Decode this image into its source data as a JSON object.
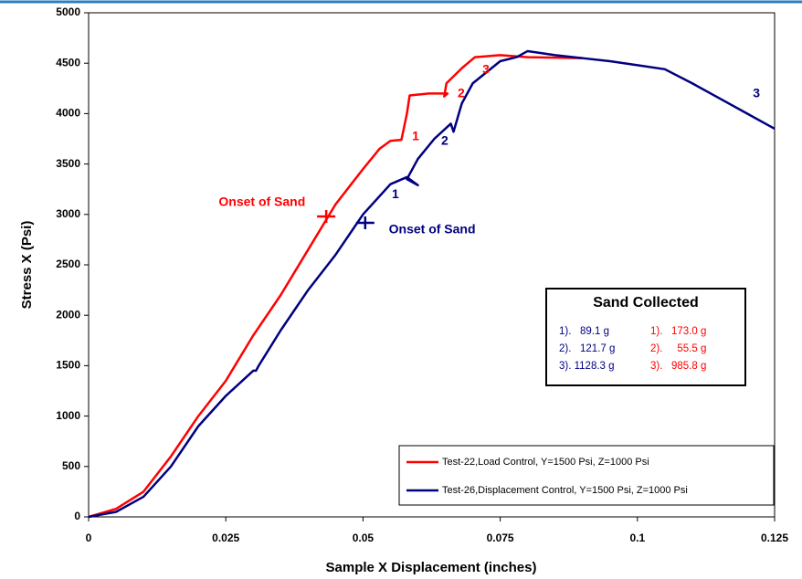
{
  "chart_data": {
    "type": "line",
    "x_label": "Sample X Displacement (inches)",
    "y_label": "Stress X (Psi)",
    "xlim": [
      0,
      0.125
    ],
    "xticks": [
      0,
      0.025,
      0.05,
      0.075,
      0.1,
      0.125
    ],
    "ylim": [
      0,
      5000
    ],
    "yticks": [
      0,
      500,
      1000,
      1500,
      2000,
      2500,
      3000,
      3500,
      4000,
      4500,
      5000
    ],
    "series": [
      {
        "name": "Test-22,Load Control, Y=1500 Psi, Z=1000 Psi",
        "color": "#ff0000",
        "x": [
          0,
          0.005,
          0.01,
          0.015,
          0.02,
          0.025,
          0.03,
          0.035,
          0.04,
          0.045,
          0.05,
          0.053,
          0.055,
          0.057,
          0.058,
          0.0585,
          0.062,
          0.0654,
          0.0648,
          0.0652,
          0.068,
          0.0704,
          0.075,
          0.08,
          0.09
        ],
        "values": [
          0,
          80,
          250,
          600,
          1000,
          1350,
          1800,
          2200,
          2650,
          3100,
          3450,
          3650,
          3730,
          3740,
          4000,
          4180,
          4200,
          4200,
          4170,
          4300,
          4450,
          4560,
          4580,
          4560,
          4550
        ]
      },
      {
        "name": "Test-26,Displacement Control, Y=1500 Psi, Z=1000 Psi",
        "color": "#000080",
        "x": [
          0,
          0.005,
          0.01,
          0.015,
          0.02,
          0.025,
          0.03,
          0.0305,
          0.031,
          0.035,
          0.04,
          0.045,
          0.05,
          0.055,
          0.058,
          0.06,
          0.058,
          0.06,
          0.063,
          0.066,
          0.0665,
          0.068,
          0.07,
          0.075,
          0.078,
          0.08,
          0.085,
          0.09,
          0.095,
          0.1,
          0.105,
          0.11,
          0.115,
          0.12,
          0.125
        ],
        "values": [
          0,
          50,
          200,
          500,
          900,
          1200,
          1450,
          1450,
          1500,
          1850,
          2250,
          2600,
          3000,
          3300,
          3370,
          3290,
          3350,
          3550,
          3750,
          3900,
          3820,
          4100,
          4300,
          4520,
          4560,
          4620,
          4580,
          4550,
          4520,
          4480,
          4440,
          4300,
          4150,
          4000,
          3850
        ]
      }
    ],
    "markers": [
      {
        "x": 0.0433,
        "y": 2980,
        "color": "#ff0000"
      },
      {
        "x": 0.0504,
        "y": 2917,
        "color": "#000080"
      }
    ],
    "annotations": [
      {
        "text": "Onset of Sand",
        "x": 0.0316,
        "y": 3116,
        "color": "#ff0000"
      },
      {
        "text": "Onset of Sand",
        "x": 0.0626,
        "y": 2844,
        "color": "#000080"
      },
      {
        "text": "1",
        "x": 0.0596,
        "y": 3768,
        "color": "#ff0000"
      },
      {
        "text": "2",
        "x": 0.0679,
        "y": 4194,
        "color": "#ff0000"
      },
      {
        "text": "3",
        "x": 0.0724,
        "y": 4429,
        "color": "#ff0000"
      },
      {
        "text": "1",
        "x": 0.0559,
        "y": 3197,
        "color": "#000080"
      },
      {
        "text": "2",
        "x": 0.0649,
        "y": 3723,
        "color": "#000080"
      },
      {
        "text": "3",
        "x": 0.1217,
        "y": 4194,
        "color": "#000080"
      }
    ],
    "sand_table": {
      "title": "Sand Collected",
      "rows": [
        [
          "1).   89.1 g",
          "1).   173.0 g"
        ],
        [
          "2).   121.7 g",
          "2).     55.5 g"
        ],
        [
          "3). 1128.3 g",
          "3).   985.8 g"
        ]
      ],
      "colors": [
        "#000080",
        "#ff0000"
      ]
    }
  }
}
